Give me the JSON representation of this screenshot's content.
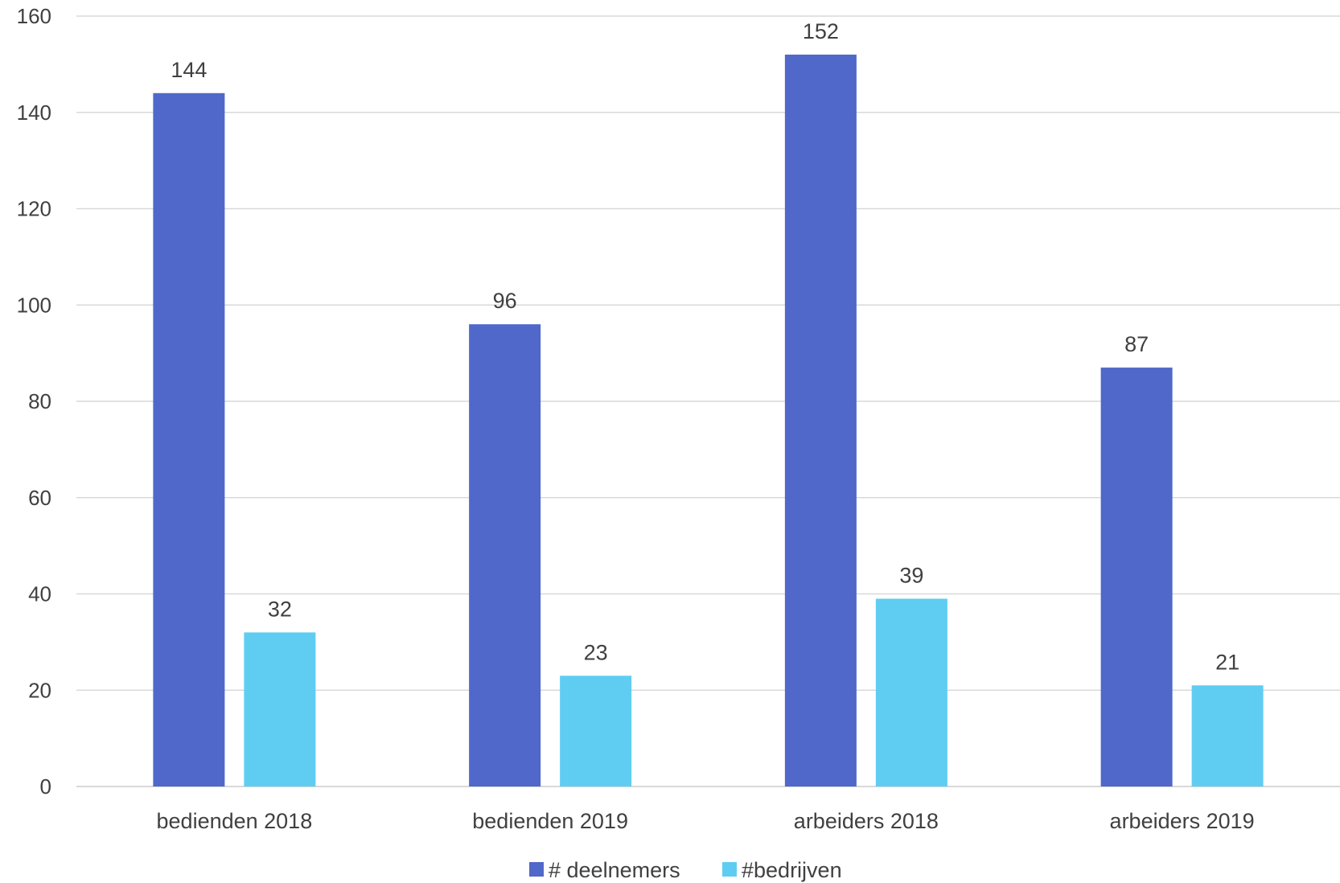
{
  "chart_data": {
    "type": "bar",
    "title": "",
    "xlabel": "",
    "ylabel": "",
    "categories": [
      "bedienden 2018",
      "bedienden 2019",
      "arbeiders 2018",
      "arbeiders 2019"
    ],
    "series": [
      {
        "name": "# deelnemers",
        "values": [
          144,
          96,
          152,
          87
        ],
        "color": "#4f68c9"
      },
      {
        "name": "#bedrijven",
        "values": [
          32,
          23,
          39,
          21
        ],
        "color": "#5fcdf2"
      }
    ],
    "ylim": [
      0,
      160
    ],
    "yticks": [
      0,
      20,
      40,
      60,
      80,
      100,
      120,
      140,
      160
    ],
    "grid": true,
    "legend": "bottom-center",
    "data_labels": true
  }
}
